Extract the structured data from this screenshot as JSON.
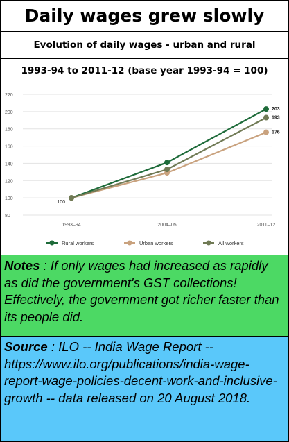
{
  "title": "Daily wages grew slowly",
  "subtitle": "Evolution of daily wages - urban and rural",
  "subtitle2": "1993-94 to 2011-12 (base year 1993-94 = 100)",
  "chart_data": {
    "type": "line",
    "categories": [
      "1993–94",
      "2004–05",
      "2011–12"
    ],
    "series": [
      {
        "name": "Rural workers",
        "values": [
          100,
          141,
          203
        ],
        "color": "#1e6b3a"
      },
      {
        "name": "Urban workers",
        "values": [
          100,
          129,
          176
        ],
        "color": "#c9a27e"
      },
      {
        "name": "All workers",
        "values": [
          100,
          133,
          193
        ],
        "color": "#707a55"
      }
    ],
    "end_labels": [
      "203",
      "176",
      "193"
    ],
    "start_label": "100",
    "yticks": [
      80,
      100,
      120,
      140,
      160,
      180,
      200,
      220
    ],
    "ylim": [
      80,
      220
    ],
    "grid": "horizontal",
    "legend": "bottom"
  },
  "notes": {
    "label": "Notes",
    "sep": " :",
    "text": "  If only wages had increased as rapidly as did the government's GST collections!  Effectively, the government got richer faster than its people did."
  },
  "source": {
    "label": "Source",
    "sep": " :",
    "text": " ILO -- India Wage Report -- https://www.ilo.org/publications/india-wage-report-wage-policies-decent-work-and-inclusive-growth -- data released on 20 August 2018."
  }
}
